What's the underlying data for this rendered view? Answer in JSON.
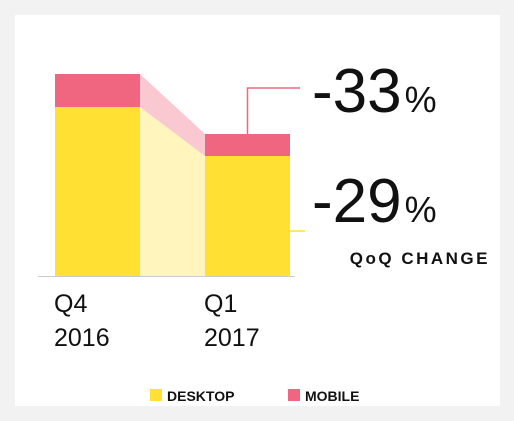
{
  "chart_data": {
    "type": "stacked_bar",
    "categories": [
      [
        "Q4",
        "2016"
      ],
      [
        "Q1",
        "2017"
      ]
    ],
    "series": [
      {
        "name": "DESKTOP",
        "color": "#ffe033",
        "band_color": "#fff5bd",
        "values": [
          169,
          120
        ]
      },
      {
        "name": "MOBILE",
        "color": "#f06680",
        "band_color": "#f9c8d1",
        "values": [
          33,
          22
        ]
      }
    ],
    "changes": [
      {
        "value": -33,
        "unit": "%"
      },
      {
        "value": -29,
        "unit": "%"
      }
    ],
    "change_label": "QoQ CHANGE"
  }
}
